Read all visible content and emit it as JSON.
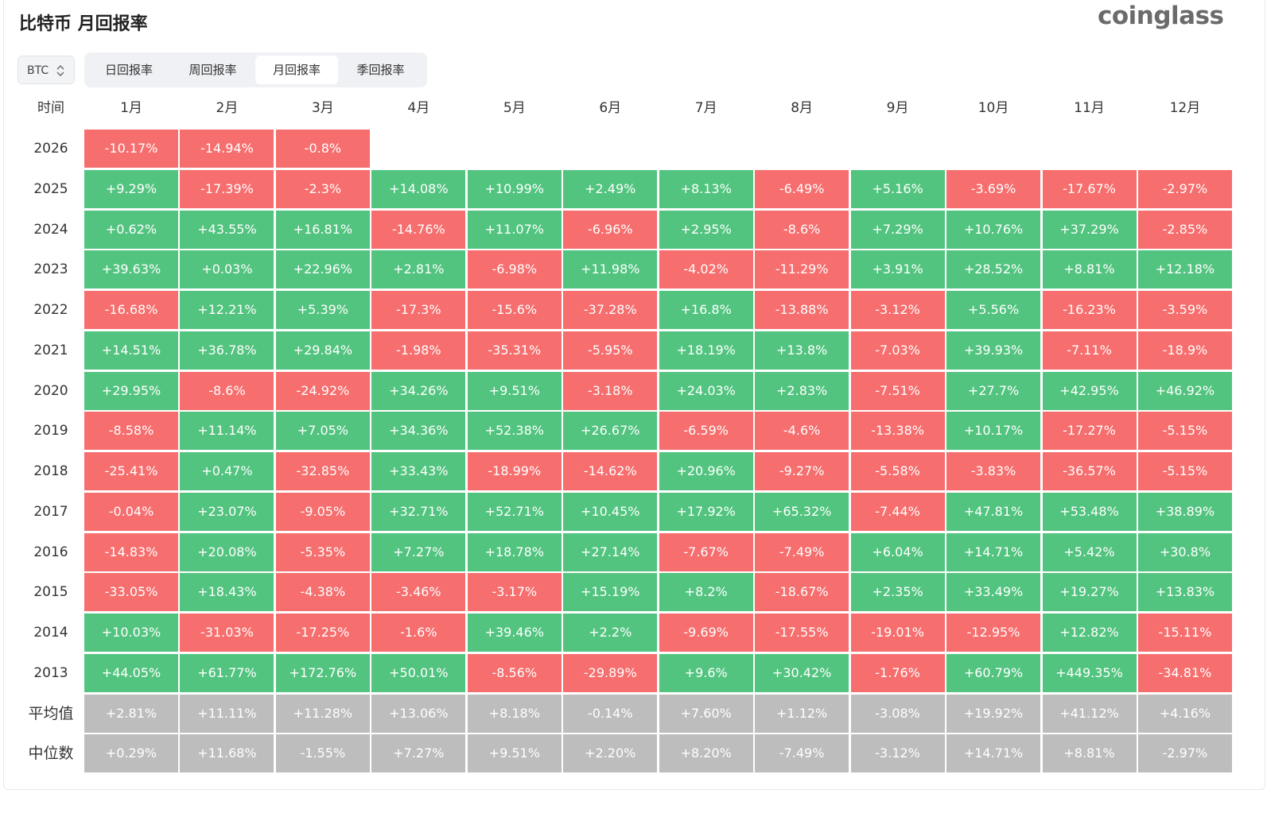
{
  "header": {
    "title": "比特币 月回报率",
    "brand": "coinglass"
  },
  "controls": {
    "coin": "BTC",
    "tabs": [
      "日回报率",
      "周回报率",
      "月回报率",
      "季回报率"
    ],
    "active_tab": 2
  },
  "colors": {
    "positive": "#52c47f",
    "negative": "#f66e6e",
    "summary": "#bdbdbd"
  },
  "table": {
    "columns": [
      "时间",
      "1月",
      "2月",
      "3月",
      "4月",
      "5月",
      "6月",
      "7月",
      "8月",
      "9月",
      "10月",
      "11月",
      "12月"
    ],
    "rows": [
      {
        "label": "2026",
        "cells": [
          "-10.17%",
          "-14.94%",
          "-0.8%"
        ]
      },
      {
        "label": "2025",
        "cells": [
          "+9.29%",
          "-17.39%",
          "-2.3%",
          "+14.08%",
          "+10.99%",
          "+2.49%",
          "+8.13%",
          "-6.49%",
          "+5.16%",
          "-3.69%",
          "-17.67%",
          "-2.97%"
        ]
      },
      {
        "label": "2024",
        "cells": [
          "+0.62%",
          "+43.55%",
          "+16.81%",
          "-14.76%",
          "+11.07%",
          "-6.96%",
          "+2.95%",
          "-8.6%",
          "+7.29%",
          "+10.76%",
          "+37.29%",
          "-2.85%"
        ]
      },
      {
        "label": "2023",
        "cells": [
          "+39.63%",
          "+0.03%",
          "+22.96%",
          "+2.81%",
          "-6.98%",
          "+11.98%",
          "-4.02%",
          "-11.29%",
          "+3.91%",
          "+28.52%",
          "+8.81%",
          "+12.18%"
        ]
      },
      {
        "label": "2022",
        "cells": [
          "-16.68%",
          "+12.21%",
          "+5.39%",
          "-17.3%",
          "-15.6%",
          "-37.28%",
          "+16.8%",
          "-13.88%",
          "-3.12%",
          "+5.56%",
          "-16.23%",
          "-3.59%"
        ]
      },
      {
        "label": "2021",
        "cells": [
          "+14.51%",
          "+36.78%",
          "+29.84%",
          "-1.98%",
          "-35.31%",
          "-5.95%",
          "+18.19%",
          "+13.8%",
          "-7.03%",
          "+39.93%",
          "-7.11%",
          "-18.9%"
        ]
      },
      {
        "label": "2020",
        "cells": [
          "+29.95%",
          "-8.6%",
          "-24.92%",
          "+34.26%",
          "+9.51%",
          "-3.18%",
          "+24.03%",
          "+2.83%",
          "-7.51%",
          "+27.7%",
          "+42.95%",
          "+46.92%"
        ]
      },
      {
        "label": "2019",
        "cells": [
          "-8.58%",
          "+11.14%",
          "+7.05%",
          "+34.36%",
          "+52.38%",
          "+26.67%",
          "-6.59%",
          "-4.6%",
          "-13.38%",
          "+10.17%",
          "-17.27%",
          "-5.15%"
        ]
      },
      {
        "label": "2018",
        "cells": [
          "-25.41%",
          "+0.47%",
          "-32.85%",
          "+33.43%",
          "-18.99%",
          "-14.62%",
          "+20.96%",
          "-9.27%",
          "-5.58%",
          "-3.83%",
          "-36.57%",
          "-5.15%"
        ]
      },
      {
        "label": "2017",
        "cells": [
          "-0.04%",
          "+23.07%",
          "-9.05%",
          "+32.71%",
          "+52.71%",
          "+10.45%",
          "+17.92%",
          "+65.32%",
          "-7.44%",
          "+47.81%",
          "+53.48%",
          "+38.89%"
        ]
      },
      {
        "label": "2016",
        "cells": [
          "-14.83%",
          "+20.08%",
          "-5.35%",
          "+7.27%",
          "+18.78%",
          "+27.14%",
          "-7.67%",
          "-7.49%",
          "+6.04%",
          "+14.71%",
          "+5.42%",
          "+30.8%"
        ]
      },
      {
        "label": "2015",
        "cells": [
          "-33.05%",
          "+18.43%",
          "-4.38%",
          "-3.46%",
          "-3.17%",
          "+15.19%",
          "+8.2%",
          "-18.67%",
          "+2.35%",
          "+33.49%",
          "+19.27%",
          "+13.83%"
        ]
      },
      {
        "label": "2014",
        "cells": [
          "+10.03%",
          "-31.03%",
          "-17.25%",
          "-1.6%",
          "+39.46%",
          "+2.2%",
          "-9.69%",
          "-17.55%",
          "-19.01%",
          "-12.95%",
          "+12.82%",
          "-15.11%"
        ]
      },
      {
        "label": "2013",
        "cells": [
          "+44.05%",
          "+61.77%",
          "+172.76%",
          "+50.01%",
          "-8.56%",
          "-29.89%",
          "+9.6%",
          "+30.42%",
          "-1.76%",
          "+60.79%",
          "+449.35%",
          "-34.81%"
        ]
      }
    ],
    "summary_rows": [
      {
        "label": "平均值",
        "cells": [
          "+2.81%",
          "+11.11%",
          "+11.28%",
          "+13.06%",
          "+8.18%",
          "-0.14%",
          "+7.60%",
          "+1.12%",
          "-3.08%",
          "+19.92%",
          "+41.12%",
          "+4.16%"
        ]
      },
      {
        "label": "中位数",
        "cells": [
          "+0.29%",
          "+11.68%",
          "-1.55%",
          "+7.27%",
          "+9.51%",
          "+2.20%",
          "+8.20%",
          "-7.49%",
          "-3.12%",
          "+14.71%",
          "+8.81%",
          "-2.97%"
        ]
      }
    ]
  }
}
